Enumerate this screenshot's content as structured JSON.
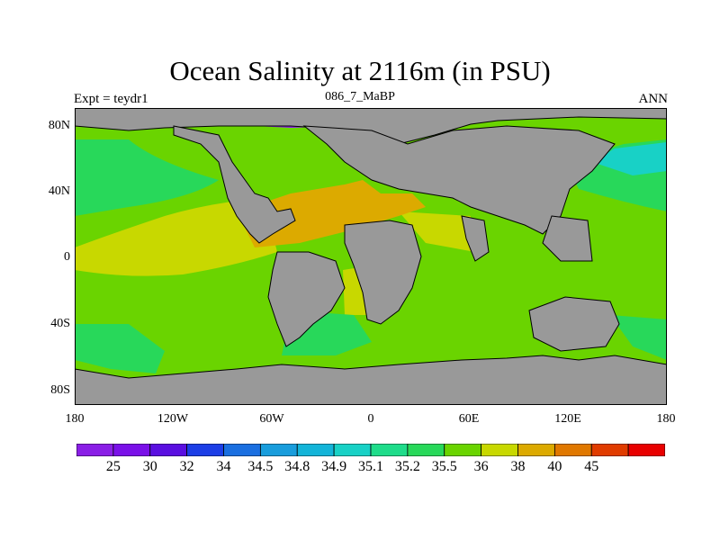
{
  "title": "Ocean Salinity at 2116m (in PSU)",
  "experiment": "Expt = teydr1",
  "subtitle": "086_7_MaBP",
  "season": "ANN",
  "lat_labels": [
    "80N",
    "40N",
    "0",
    "40S",
    "80S"
  ],
  "lon_labels": [
    "180",
    "120W",
    "60W",
    "0",
    "60E",
    "120E",
    "180"
  ],
  "colorbar": {
    "labels": [
      "25",
      "30",
      "32",
      "34",
      "34.5",
      "34.8",
      "34.9",
      "35.1",
      "35.2",
      "35.5",
      "36",
      "38",
      "40",
      "45"
    ],
    "colors": [
      "#8a1fe6",
      "#7a10e8",
      "#5a0fe0",
      "#1c3ee6",
      "#1a6fe0",
      "#199ddc",
      "#13b4d8",
      "#18d1c6",
      "#1fdc8a",
      "#28d85a",
      "#6ad400",
      "#c8d800",
      "#dcaa00",
      "#e07800",
      "#e03c00",
      "#e80000"
    ]
  },
  "colors": {
    "land": "#999999",
    "ocean_main": "#6ad400",
    "ocean_high": "#c8d800",
    "ocean_max": "#dcaa00",
    "ocean_low": "#28d85a",
    "polar": "#8a1fe6"
  }
}
